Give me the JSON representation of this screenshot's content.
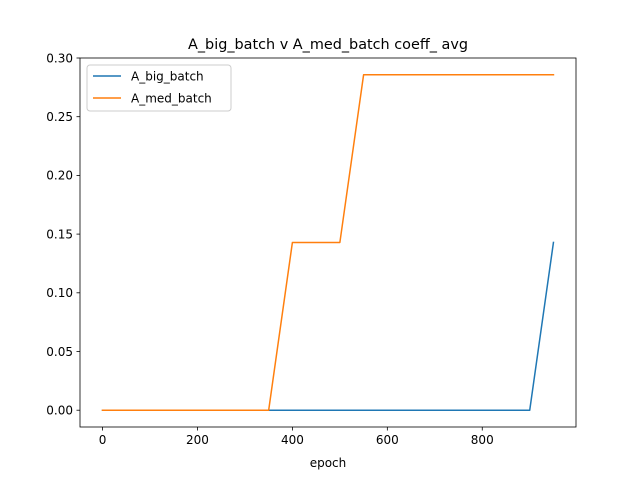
{
  "chart_data": {
    "type": "line",
    "title": "A_big_batch v A_med_batch coeff_ avg",
    "xlabel": "epoch",
    "ylabel": "",
    "xlim": [
      -47.5,
      997.5
    ],
    "ylim": [
      -0.0143,
      0.3
    ],
    "xticks": [
      0,
      200,
      400,
      600,
      800
    ],
    "xtick_labels": [
      "0",
      "200",
      "400",
      "600",
      "800"
    ],
    "yticks": [
      0.0,
      0.05,
      0.1,
      0.15,
      0.2,
      0.25,
      0.3
    ],
    "ytick_labels": [
      "0.00",
      "0.05",
      "0.10",
      "0.15",
      "0.20",
      "0.25",
      "0.30"
    ],
    "grid": false,
    "legend_position": "top-left",
    "series": [
      {
        "name": "A_big_batch",
        "color": "#1f77b4",
        "x": [
          0,
          50,
          100,
          150,
          200,
          250,
          300,
          350,
          400,
          450,
          500,
          550,
          600,
          650,
          700,
          750,
          800,
          850,
          900,
          950
        ],
        "y": [
          0,
          0,
          0,
          0,
          0,
          0,
          0,
          0,
          0,
          0,
          0,
          0,
          0,
          0,
          0,
          0,
          0,
          0,
          0,
          0.1429
        ]
      },
      {
        "name": "A_med_batch",
        "color": "#ff7f0e",
        "x": [
          0,
          50,
          100,
          150,
          200,
          250,
          300,
          350,
          400,
          450,
          500,
          550,
          600,
          650,
          700,
          750,
          800,
          850,
          900,
          950
        ],
        "y": [
          0,
          0,
          0,
          0,
          0,
          0,
          0,
          0,
          0.1429,
          0.1429,
          0.1429,
          0.2857,
          0.2857,
          0.2857,
          0.2857,
          0.2857,
          0.2857,
          0.2857,
          0.2857,
          0.2857
        ]
      }
    ]
  }
}
